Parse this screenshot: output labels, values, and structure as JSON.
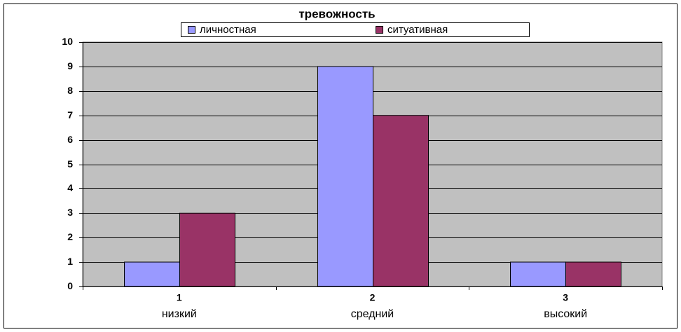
{
  "chart_data": {
    "type": "bar",
    "title": "тревожность",
    "categories": [
      "1",
      "2",
      "3"
    ],
    "sublabels": [
      "низкий",
      "средний",
      "высокий"
    ],
    "series": [
      {
        "name": "личностная",
        "color": "#9999ff",
        "values": [
          1,
          9,
          1
        ]
      },
      {
        "name": "ситуативная",
        "color": "#993366",
        "values": [
          3,
          7,
          1
        ]
      }
    ],
    "ylim": [
      0,
      10
    ],
    "yticks": [
      0,
      1,
      2,
      3,
      4,
      5,
      6,
      7,
      8,
      9,
      10
    ],
    "grid": true,
    "legend": "top"
  }
}
